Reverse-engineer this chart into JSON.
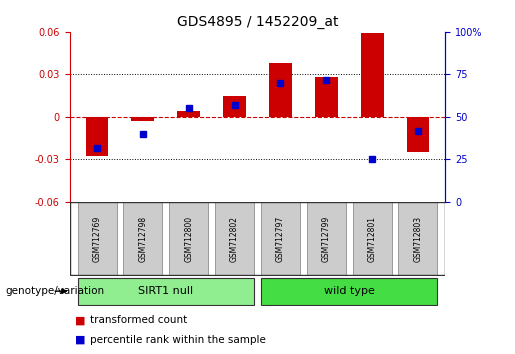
{
  "title": "GDS4895 / 1452209_at",
  "samples": [
    "GSM712769",
    "GSM712798",
    "GSM712800",
    "GSM712802",
    "GSM712797",
    "GSM712799",
    "GSM712801",
    "GSM712803"
  ],
  "groups": [
    {
      "name": "SIRT1 null",
      "color": "#90EE90"
    },
    {
      "name": "wild type",
      "color": "#44DD44"
    }
  ],
  "red_bars": [
    -0.028,
    -0.003,
    0.004,
    0.015,
    0.038,
    0.028,
    0.059,
    -0.025
  ],
  "blue_dots": [
    -0.022,
    -0.012,
    0.006,
    0.008,
    0.024,
    0.026,
    -0.03,
    -0.01
  ],
  "ylim_left": [
    -0.06,
    0.06
  ],
  "yticks_left": [
    -0.06,
    -0.03,
    0.0,
    0.03,
    0.06
  ],
  "ylim_right": [
    0,
    100
  ],
  "yticks_right": [
    0,
    25,
    50,
    75,
    100
  ],
  "ylabel_left_color": "#CC0000",
  "ylabel_right_color": "#0000CC",
  "bar_color": "#CC0000",
  "dot_color": "#0000CC",
  "zero_line_color": "#CC0000",
  "grid_color": "#000000",
  "legend_red": "transformed count",
  "legend_blue": "percentile rank within the sample",
  "genotype_label": "genotype/variation",
  "group_label_sirt1": "SIRT1 null",
  "group_label_wt": "wild type",
  "title_fontsize": 10,
  "tick_fontsize": 7,
  "bar_width": 0.5
}
